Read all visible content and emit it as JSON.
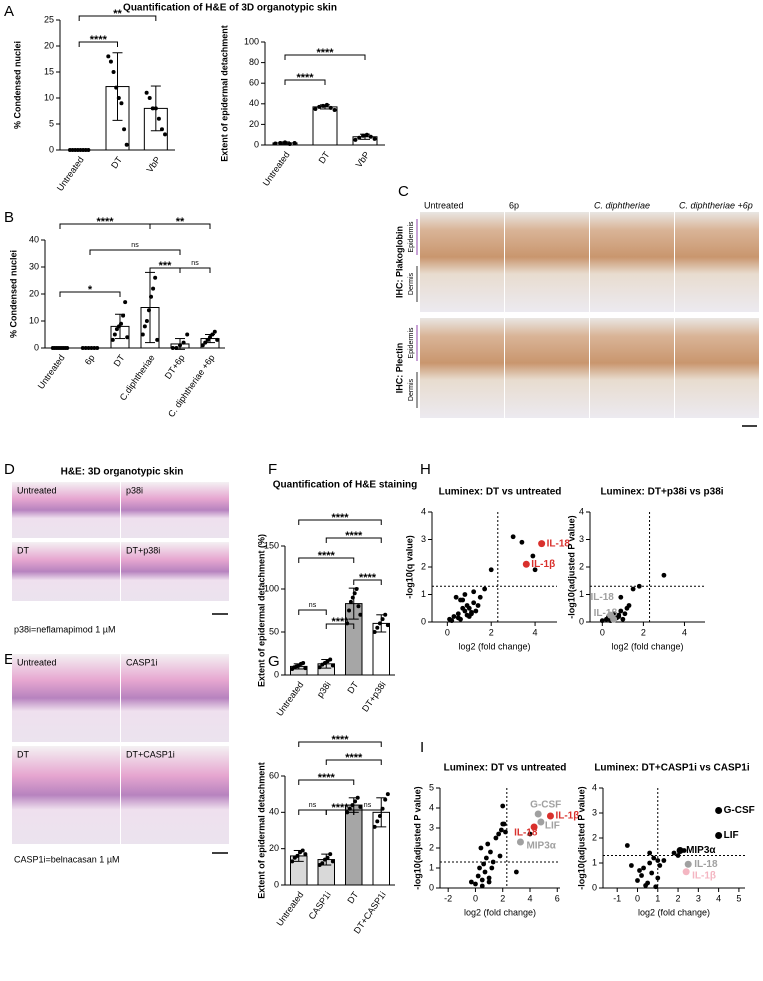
{
  "chart_data": [
    {
      "type": "bar",
      "panel": "A",
      "title": "Quantification of H&E of 3D organotypic skin",
      "ylabel": "% Condensed nuclei",
      "categories": [
        "Untreated",
        "DT",
        "VbP"
      ],
      "values": [
        0,
        12.2,
        8
      ],
      "errors": [
        0,
        6.5,
        4.3
      ],
      "points": [
        [
          0,
          0,
          0,
          0,
          0,
          0,
          0,
          0
        ],
        [
          18,
          17,
          15,
          12,
          10,
          9,
          4,
          1
        ],
        [
          11,
          10,
          8,
          8,
          6,
          4,
          3
        ]
      ],
      "colors": [
        "#ffffff",
        "#ffffff",
        "#ffffff"
      ],
      "ylim": [
        0,
        25
      ],
      "yticks": [
        0,
        5,
        10,
        15,
        20,
        25
      ],
      "significance": [
        "****",
        "**"
      ]
    },
    {
      "type": "bar",
      "ylabel": "Extent of epidermal detachment",
      "categories": [
        "Untreated",
        "DT",
        "VbP"
      ],
      "values": [
        2,
        37,
        8
      ],
      "errors": [
        1,
        2,
        2.5
      ],
      "points": [
        [
          1.5,
          2,
          2.5,
          1,
          2
        ],
        [
          35,
          37,
          38,
          39,
          36,
          34
        ],
        [
          5,
          7,
          9,
          10,
          8,
          6
        ]
      ],
      "colors": [
        "#ffffff",
        "#ffffff",
        "#ffffff"
      ],
      "ylim": [
        0,
        100
      ],
      "yticks": [
        0,
        20,
        40,
        60,
        80,
        100
      ],
      "significance": [
        "****",
        "****"
      ]
    },
    {
      "type": "bar",
      "panel": "B",
      "ylabel": "% Condensed nuclei",
      "categories": [
        "Untreated",
        "6p",
        "DT",
        "C.diphtheriae",
        "DT+6p",
        "C. diphtheriae +6p"
      ],
      "values": [
        0,
        0,
        8,
        15,
        1.5,
        3.5
      ],
      "errors": [
        0,
        0,
        4.5,
        13,
        2,
        1.5
      ],
      "points": [
        [
          0,
          0,
          0,
          0,
          0,
          0,
          0,
          0
        ],
        [
          0,
          0,
          0,
          0,
          0,
          0
        ],
        [
          3,
          5,
          7,
          8,
          9,
          12,
          17,
          4
        ],
        [
          5,
          8,
          10,
          14,
          19,
          22,
          26,
          3
        ],
        [
          0,
          0,
          1,
          2,
          5
        ],
        [
          1,
          2,
          3,
          4,
          5,
          6,
          3
        ]
      ],
      "colors": [
        "#ffffff",
        "#ffffff",
        "#ffffff",
        "#ffffff",
        "#ffffff",
        "#ffffff"
      ],
      "ylim": [
        0,
        40
      ],
      "yticks": [
        0,
        10,
        20,
        30,
        40
      ],
      "significance": [
        "*",
        "***",
        "ns",
        "ns",
        "****",
        "**"
      ]
    },
    {
      "type": "bar",
      "panel": "F",
      "title": "Quantification of H&E staining",
      "ylabel": "Extent of epidermal detachment (%)",
      "categories": [
        "Untreated",
        "p38i",
        "DT",
        "DT+p38i"
      ],
      "values": [
        10,
        13,
        83,
        60
      ],
      "errors": [
        3,
        5,
        18,
        10
      ],
      "points": [
        [
          7,
          9,
          10,
          11,
          13,
          14,
          8
        ],
        [
          9,
          12,
          14,
          16,
          18,
          11
        ],
        [
          60,
          75,
          85,
          90,
          95,
          100,
          80,
          70
        ],
        [
          50,
          55,
          60,
          65,
          70,
          58
        ]
      ],
      "colors": [
        "#d9d9d9",
        "#e6e6e6",
        "#a6a6a6",
        "#ffffff"
      ],
      "ylim": [
        0,
        150
      ],
      "yticks": [
        0,
        50,
        100,
        150
      ],
      "significance": [
        "ns",
        "****",
        "****",
        "****",
        "****",
        "****"
      ]
    },
    {
      "type": "bar",
      "panel": "G",
      "ylabel": "Extent of epidermal detachment",
      "categories": [
        "Untreated",
        "CASP1i",
        "DT",
        "DT+CASP1i"
      ],
      "values": [
        16,
        14,
        44,
        40
      ],
      "errors": [
        3,
        3,
        4,
        8
      ],
      "points": [
        [
          13,
          15,
          16,
          18,
          19,
          17
        ],
        [
          11,
          12,
          14,
          15,
          17,
          13
        ],
        [
          40,
          42,
          44,
          46,
          48,
          43
        ],
        [
          32,
          35,
          38,
          42,
          47,
          50
        ]
      ],
      "colors": [
        "#d9d9d9",
        "#d9d9d9",
        "#a6a6a6",
        "#ffffff"
      ],
      "ylim": [
        0,
        60
      ],
      "yticks": [
        0,
        20,
        40,
        60
      ],
      "significance": [
        "ns",
        "****",
        "ns",
        "****",
        "****",
        "****"
      ]
    },
    {
      "type": "scatter",
      "panel": "H",
      "title": "Luminex: DT vs untreated",
      "xlabel": "log2 (fold change)",
      "ylabel": "-log10(q value)",
      "x": [
        0.1,
        0.3,
        0.5,
        0.6,
        0.7,
        0.8,
        0.9,
        1,
        1.1,
        1.2,
        0.4,
        0.6,
        0.8,
        1,
        1.3,
        1.5,
        0.2,
        0.5,
        0.9,
        1.1,
        1.4,
        1.7,
        2,
        1.2,
        0.7,
        3,
        3.4,
        3.9,
        4
      ],
      "values": [
        0.1,
        0.2,
        0.3,
        0.1,
        0.5,
        0.4,
        0.6,
        0.2,
        0.3,
        0.7,
        0.9,
        0.8,
        1,
        0.5,
        0.4,
        0.9,
        0.05,
        0.15,
        0.25,
        0.35,
        0.6,
        1.2,
        1.9,
        1.1,
        0.8,
        3.1,
        2.9,
        2.4,
        1.9
      ],
      "color": "#000000",
      "xlim": [
        -0.7,
        5
      ],
      "ylim": [
        0,
        4
      ],
      "xticks": [
        0,
        2,
        4
      ],
      "yticks": [
        0,
        1,
        2,
        3,
        4
      ],
      "vline": 2.3,
      "hline": 1.3,
      "labeled": [
        {
          "label": "IL-18",
          "x": 4.3,
          "y": 2.85,
          "color": "#d9302c"
        },
        {
          "label": "IL-1β",
          "x": 3.6,
          "y": 2.1,
          "color": "#d9302c"
        }
      ]
    },
    {
      "type": "scatter",
      "title": "Luminex: DT+p38i vs p38i",
      "xlabel": "log2 (fold change)",
      "ylabel": "-log10(adjusted P value)",
      "x": [
        0,
        0.2,
        0.3,
        0.5,
        0.6,
        0.8,
        0.9,
        1,
        1.1,
        1.2,
        0.4,
        0.7,
        0.9,
        1.3,
        1.5,
        1.8,
        0.8,
        3
      ],
      "values": [
        0.05,
        0.1,
        0.2,
        0.1,
        0.3,
        0.2,
        0.4,
        0.1,
        0.3,
        0.5,
        0.05,
        0.15,
        0.9,
        0.6,
        1.2,
        1.3,
        0.25,
        1.7
      ],
      "color": "#000000",
      "xlim": [
        -0.6,
        5
      ],
      "ylim": [
        0,
        4
      ],
      "xticks": [
        0,
        2,
        4
      ],
      "yticks": [
        0,
        1,
        2,
        3,
        4
      ],
      "vline": 2.3,
      "hline": 1.3,
      "labeled": [
        {
          "label": "IL-18",
          "x": 0.4,
          "y": 0.25,
          "color": "#a0a0a0"
        },
        {
          "label": "IL-1β",
          "x": 0.55,
          "y": 0.1,
          "color": "#a0a0a0"
        }
      ]
    },
    {
      "type": "scatter",
      "panel": "I",
      "title": "Luminex: DT vs untreated",
      "xlabel": "log2 (fold change)",
      "ylabel": "-log10(adjusted P value)",
      "x": [
        -0.3,
        0,
        0.2,
        0.3,
        0.5,
        0.6,
        0.7,
        0.8,
        1,
        1.1,
        1.2,
        0.4,
        0.9,
        1.3,
        1.5,
        1.7,
        1.9,
        2,
        2.1,
        1.8,
        0.5,
        1,
        2,
        2.2,
        3,
        4
      ],
      "values": [
        0.3,
        0.2,
        0.6,
        1,
        0.4,
        1.2,
        0.8,
        1.5,
        0.5,
        1.8,
        1,
        2,
        2.2,
        1.3,
        2.5,
        2.7,
        2.9,
        3.2,
        3.2,
        1.6,
        0.1,
        0.3,
        4.1,
        2.8,
        0.8,
        2.7
      ],
      "color": "#000000",
      "xlim": [
        -2.6,
        6.2
      ],
      "ylim": [
        0,
        5
      ],
      "xticks": [
        -2,
        0,
        2,
        4,
        6
      ],
      "yticks": [
        0,
        1,
        2,
        3,
        4,
        5
      ],
      "vline": 2.3,
      "hline": 1.3,
      "labeled": [
        {
          "label": "G-CSF",
          "x": 4.6,
          "y": 3.7,
          "color": "#a0a0a0"
        },
        {
          "label": "LIF",
          "x": 4.8,
          "y": 3.3,
          "color": "#a0a0a0"
        },
        {
          "label": "IL-1β",
          "x": 5.5,
          "y": 3.6,
          "color": "#d9302c"
        },
        {
          "label": "IL-18",
          "x": 4.3,
          "y": 3.05,
          "color": "#d9302c"
        },
        {
          "label": "MIP3α",
          "x": 3.3,
          "y": 2.3,
          "color": "#a0a0a0"
        }
      ]
    },
    {
      "type": "scatter",
      "title": "Luminex: DT+CASP1i vs CASP1i",
      "xlabel": "log2 (fold change)",
      "ylabel": "-log10(adjusted P value)",
      "x": [
        -0.5,
        0,
        0.2,
        0.3,
        0.5,
        0.6,
        0.7,
        0.8,
        1,
        1.1,
        0.4,
        0.9,
        1.3,
        0.1,
        0.6,
        1,
        1.8,
        2,
        2.3,
        -0.3
      ],
      "values": [
        1.7,
        0.3,
        0.5,
        0.8,
        0.2,
        1,
        0.6,
        1.2,
        0.4,
        0.9,
        0.1,
        0.05,
        1.1,
        0.7,
        1.4,
        1.1,
        1.4,
        1.3,
        1.5,
        0.9
      ],
      "color": "#000000",
      "xlim": [
        -1.7,
        5.3
      ],
      "ylim": [
        0,
        4
      ],
      "xticks": [
        -1,
        0,
        1,
        2,
        3,
        4,
        5
      ],
      "yticks": [
        0,
        1,
        2,
        3,
        4
      ],
      "vline": 1,
      "hline": 1.3,
      "labeled": [
        {
          "label": "G-CSF",
          "x": 4,
          "y": 3.1,
          "color": "#000000"
        },
        {
          "label": "LIF",
          "x": 4,
          "y": 2.1,
          "color": "#000000"
        },
        {
          "label": "MIP3α",
          "x": 2.1,
          "y": 1.5,
          "color": "#000000"
        },
        {
          "label": "IL-18",
          "x": 2.5,
          "y": 0.95,
          "color": "#a0a0a0"
        },
        {
          "label": "IL-1β",
          "x": 2.4,
          "y": 0.65,
          "color": "#f4b6c2"
        }
      ]
    }
  ],
  "micrographs": [
    {
      "panel": "C",
      "columns": [
        "Untreated",
        "6p",
        "C. diphtheriae",
        "C. diphtheriae +6p"
      ],
      "rows": [
        "IHC: Plakoglobin",
        "IHC: Plectin"
      ],
      "layer_labels": [
        "Epidermis",
        "Dermis"
      ]
    },
    {
      "panel": "D",
      "title": "H&E: 3D organotypic skin",
      "labels": [
        "Untreated",
        "p38i",
        "DT",
        "DT+p38i"
      ],
      "caption": "p38i=neflamapimod 1 µM"
    },
    {
      "panel": "E",
      "labels": [
        "Untreated",
        "CASP1i",
        "DT",
        "DT+CASP1i"
      ],
      "caption": "CASP1i=belnacasan 1 µM"
    }
  ]
}
